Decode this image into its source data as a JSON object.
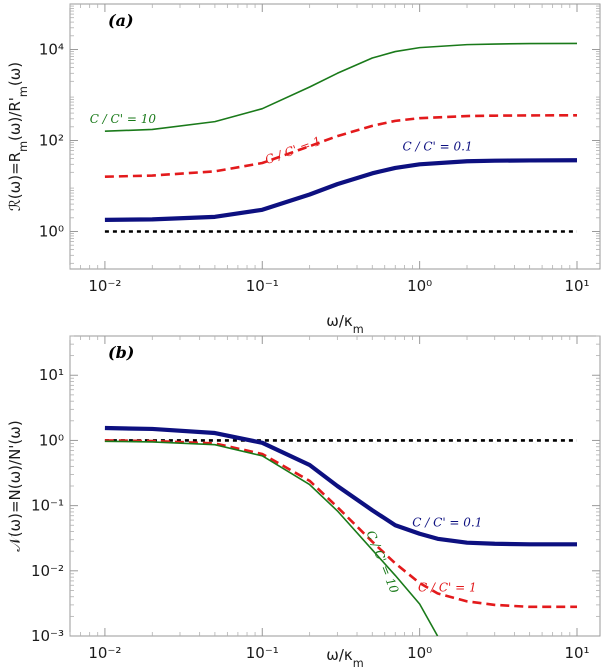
{
  "chart_data": [
    {
      "type": "line",
      "panel_label": "(a)",
      "xlabel": "ω/κ_m",
      "ylabel": "ℛ(ω)=R_m(ω)/R'_m(ω)",
      "xscale": "log",
      "yscale": "log",
      "xlim": [
        0.006,
        14
      ],
      "ylim": [
        0.15,
        100000
      ],
      "xticks": [
        0.01,
        0.1,
        1,
        10
      ],
      "xtick_labels": [
        "10⁻²",
        "10⁻¹",
        "10⁰",
        "10¹"
      ],
      "yticks": [
        1,
        100,
        10000
      ],
      "ytick_labels": [
        "10⁰",
        "10²",
        "10⁴"
      ],
      "grid": false,
      "x": [
        0.01,
        0.02,
        0.05,
        0.1,
        0.2,
        0.3,
        0.5,
        0.7,
        1,
        2,
        3,
        5,
        10
      ],
      "series": [
        {
          "name": "C / C' = 10",
          "color": "#1a7a1a",
          "style": "solid",
          "width": "thin",
          "values": [
            160,
            175,
            260,
            500,
            1500,
            3000,
            6500,
            9000,
            11000,
            12800,
            13200,
            13500,
            13600
          ],
          "label_at": [
            0.013,
            240
          ]
        },
        {
          "name": "C / C' = 1",
          "color": "#e31a1c",
          "style": "dashed",
          "width": "medium",
          "values": [
            16,
            17,
            21,
            32,
            75,
            125,
            210,
            270,
            310,
            345,
            352,
            356,
            358
          ],
          "label_at": [
            0.16,
            50
          ],
          "label_rotation": -20
        },
        {
          "name": "C / C' = 0.1",
          "color": "#0d1080",
          "style": "solid",
          "width": "thick",
          "values": [
            1.8,
            1.85,
            2.1,
            3.0,
            6.5,
            11,
            19,
            25,
            30,
            35,
            36,
            36.5,
            36.8
          ],
          "label_at": [
            1.3,
            60
          ]
        },
        {
          "name": "",
          "color": "#000000",
          "style": "dotted",
          "width": "medium",
          "values": [
            1,
            1,
            1,
            1,
            1,
            1,
            1,
            1,
            1,
            1,
            1,
            1,
            1
          ]
        }
      ]
    },
    {
      "type": "line",
      "panel_label": "(b)",
      "xlabel": "ω/κ_m",
      "ylabel": "𝒩(ω)=N(ω)/N'(ω)",
      "xscale": "log",
      "yscale": "log",
      "xlim": [
        0.006,
        14
      ],
      "ylim": [
        0.001,
        40
      ],
      "xticks": [
        0.01,
        0.1,
        1,
        10
      ],
      "xtick_labels": [
        "10⁻²",
        "10⁻¹",
        "10⁰",
        "10¹"
      ],
      "yticks": [
        0.001,
        0.01,
        0.1,
        1,
        10
      ],
      "ytick_labels": [
        "10⁻³",
        "10⁻²",
        "10⁻¹",
        "10⁰",
        "10¹"
      ],
      "grid": false,
      "x": [
        0.01,
        0.02,
        0.05,
        0.1,
        0.2,
        0.3,
        0.5,
        0.7,
        1,
        1.3,
        2,
        3,
        5,
        10
      ],
      "series": [
        {
          "name": "C / C' = 0.1",
          "color": "#0d1080",
          "style": "solid",
          "width": "thick",
          "values": [
            1.55,
            1.5,
            1.3,
            0.92,
            0.42,
            0.2,
            0.085,
            0.05,
            0.037,
            0.031,
            0.027,
            0.026,
            0.0255,
            0.0255
          ],
          "label_at": [
            1.5,
            0.048
          ]
        },
        {
          "name": "C / C' = 1",
          "color": "#e31a1c",
          "style": "dashed",
          "width": "medium",
          "values": [
            1.0,
            0.98,
            0.9,
            0.62,
            0.24,
            0.095,
            0.028,
            0.013,
            0.0065,
            0.0045,
            0.0034,
            0.003,
            0.0028,
            0.0028
          ],
          "label_at": [
            1.5,
            0.0048
          ]
        },
        {
          "name": "C / C' = 10",
          "color": "#1a7a1a",
          "style": "solid",
          "width": "thin",
          "values": [
            0.97,
            0.95,
            0.86,
            0.58,
            0.21,
            0.083,
            0.021,
            0.0085,
            0.0031,
            0.001,
            null,
            null,
            null,
            null
          ],
          "label_at": [
            0.55,
            0.013
          ],
          "label_rotation": 68
        },
        {
          "name": "",
          "color": "#000000",
          "style": "dotted",
          "width": "medium",
          "values": [
            1,
            1,
            1,
            1,
            1,
            1,
            1,
            1,
            1,
            1,
            1,
            1,
            1,
            1
          ]
        }
      ]
    }
  ]
}
